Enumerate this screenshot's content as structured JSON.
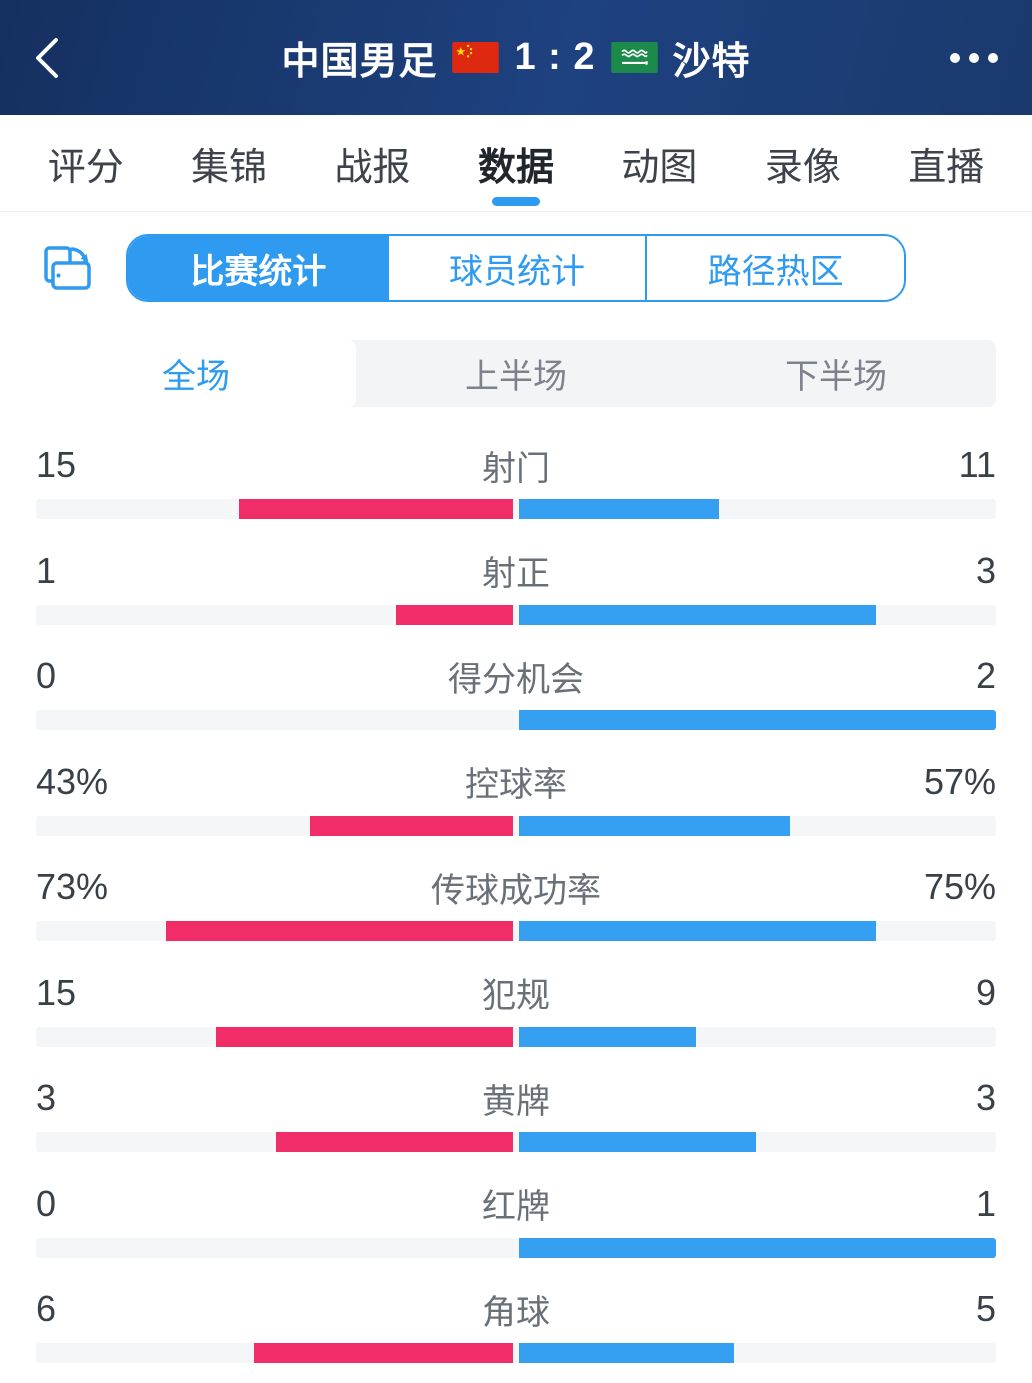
{
  "colors": {
    "accent": "#2F9BF0",
    "home_bar": "#F02D68",
    "away_bar": "#35A0F2",
    "header_navy": "#1E3A69"
  },
  "icons": {
    "back": "chevron-left-icon",
    "more": "ellipsis-icon",
    "home_flag": "china-flag-icon",
    "away_flag": "saudi-arabia-flag-icon",
    "rotate": "rotate-device-icon"
  },
  "header": {
    "home_team": "中国男足",
    "score": "1 : 2",
    "away_team": "沙特"
  },
  "nav_tabs": [
    {
      "label": "评分",
      "active": false
    },
    {
      "label": "集锦",
      "active": false
    },
    {
      "label": "战报",
      "active": false
    },
    {
      "label": "数据",
      "active": true
    },
    {
      "label": "动图",
      "active": false
    },
    {
      "label": "录像",
      "active": false
    },
    {
      "label": "直播",
      "active": false
    }
  ],
  "stat_type_tabs": [
    {
      "label": "比赛统计",
      "active": true
    },
    {
      "label": "球员统计",
      "active": false
    },
    {
      "label": "路径热区",
      "active": false
    }
  ],
  "period_tabs": [
    {
      "label": "全场",
      "active": true
    },
    {
      "label": "上半场",
      "active": false
    },
    {
      "label": "下半场",
      "active": false
    }
  ],
  "chart_data": {
    "type": "bar",
    "title": "比赛统计 - 全场",
    "legend": {
      "home": "中国男足",
      "away": "沙特"
    },
    "home_color": "#F02D68",
    "away_color": "#35A0F2",
    "layout": "paired horizontal bars extending from center; count rows scaled by share of total, percent rows scaled by value/100",
    "rows": [
      {
        "label": "射门",
        "home": 15,
        "away": 11,
        "home_text": "15",
        "away_text": "11",
        "unit": "count"
      },
      {
        "label": "射正",
        "home": 1,
        "away": 3,
        "home_text": "1",
        "away_text": "3",
        "unit": "count"
      },
      {
        "label": "得分机会",
        "home": 0,
        "away": 2,
        "home_text": "0",
        "away_text": "2",
        "unit": "count"
      },
      {
        "label": "控球率",
        "home": 43,
        "away": 57,
        "home_text": "43%",
        "away_text": "57%",
        "unit": "percent"
      },
      {
        "label": "传球成功率",
        "home": 73,
        "away": 75,
        "home_text": "73%",
        "away_text": "75%",
        "unit": "percent"
      },
      {
        "label": "犯规",
        "home": 15,
        "away": 9,
        "home_text": "15",
        "away_text": "9",
        "unit": "count"
      },
      {
        "label": "黄牌",
        "home": 3,
        "away": 3,
        "home_text": "3",
        "away_text": "3",
        "unit": "count"
      },
      {
        "label": "红牌",
        "home": 0,
        "away": 1,
        "home_text": "0",
        "away_text": "1",
        "unit": "count"
      },
      {
        "label": "角球",
        "home": 6,
        "away": 5,
        "home_text": "6",
        "away_text": "5",
        "unit": "count"
      }
    ]
  }
}
